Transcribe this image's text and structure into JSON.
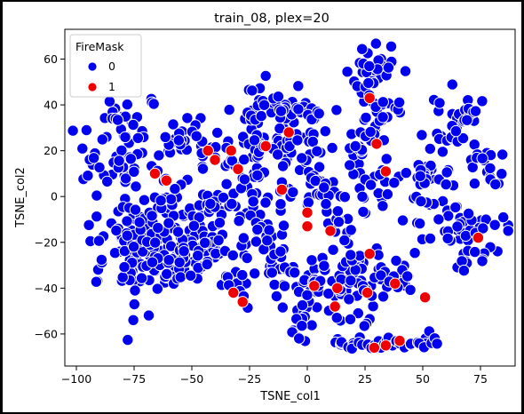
{
  "chart_data": {
    "type": "scatter",
    "title": "train_08, plex=20",
    "xlabel": "TSNE_col1",
    "ylabel": "TSNE_col2",
    "xlim": [
      -105,
      90
    ],
    "ylim": [
      -74,
      73
    ],
    "xticks": [
      -100,
      -75,
      -50,
      -25,
      0,
      25,
      50,
      75
    ],
    "yticks": [
      -60,
      -40,
      -20,
      0,
      20,
      40,
      60
    ],
    "xtick_labels": [
      "−100",
      "−75",
      "−50",
      "−25",
      "0",
      "25",
      "50",
      "75"
    ],
    "ytick_labels": [
      "−60",
      "−40",
      "−20",
      "0",
      "20",
      "40",
      "60"
    ],
    "grid": false,
    "legend": {
      "title": "FireMask",
      "placement": "top-left",
      "entries": [
        {
          "label": "0",
          "color": "#0000ee"
        },
        {
          "label": "1",
          "color": "#ee0000"
        }
      ]
    },
    "marker_edge_color": "#ffffff",
    "series": [
      {
        "name": "0",
        "color": "#0000ee",
        "clusters": [
          {
            "cx": -80,
            "cy": 20,
            "sx": 6,
            "sy": 11,
            "n": 45
          },
          {
            "cx": -82,
            "cy": 34,
            "sx": 4,
            "sy": 4,
            "n": 10
          },
          {
            "cx": -92,
            "cy": 17,
            "sx": 3,
            "sy": 3,
            "n": 6
          },
          {
            "cx": -67,
            "cy": 42,
            "sx": 2,
            "sy": 2,
            "n": 3
          },
          {
            "cx": -72,
            "cy": -20,
            "sx": 10,
            "sy": 12,
            "n": 110
          },
          {
            "cx": -55,
            "cy": -15,
            "sx": 7,
            "sy": 13,
            "n": 60
          },
          {
            "cx": -60,
            "cy": -30,
            "sx": 8,
            "sy": 5,
            "n": 30
          },
          {
            "cx": -40,
            "cy": -22,
            "sx": 5,
            "sy": 12,
            "n": 30
          },
          {
            "cx": -40,
            "cy": -2,
            "sx": 4,
            "sy": 6,
            "n": 12
          },
          {
            "cx": -32,
            "cy": -33,
            "sx": 4,
            "sy": 6,
            "n": 12
          },
          {
            "cx": -50,
            "cy": 27,
            "sx": 6,
            "sy": 4,
            "n": 20
          },
          {
            "cx": -35,
            "cy": 22,
            "sx": 6,
            "sy": 4,
            "n": 15
          },
          {
            "cx": -60,
            "cy": 22,
            "sx": 4,
            "sy": 3,
            "n": 8
          },
          {
            "cx": -20,
            "cy": 38,
            "sx": 8,
            "sy": 5,
            "n": 30
          },
          {
            "cx": -10,
            "cy": 40,
            "sx": 5,
            "sy": 4,
            "n": 15
          },
          {
            "cx": -8,
            "cy": 25,
            "sx": 4,
            "sy": 6,
            "n": 15
          },
          {
            "cx": -22,
            "cy": 18,
            "sx": 5,
            "sy": 6,
            "n": 20
          },
          {
            "cx": -24,
            "cy": -2,
            "sx": 5,
            "sy": 8,
            "n": 20
          },
          {
            "cx": -20,
            "cy": -20,
            "sx": 4,
            "sy": 10,
            "n": 20
          },
          {
            "cx": -12,
            "cy": -28,
            "sx": 4,
            "sy": 10,
            "n": 20
          },
          {
            "cx": -8,
            "cy": 5,
            "sx": 3,
            "sy": 8,
            "n": 12
          },
          {
            "cx": 3,
            "cy": 35,
            "sx": 4,
            "sy": 7,
            "n": 15
          },
          {
            "cx": 2,
            "cy": 15,
            "sx": 3,
            "sy": 8,
            "n": 15
          },
          {
            "cx": 8,
            "cy": 0,
            "sx": 4,
            "sy": 5,
            "n": 12
          },
          {
            "cx": 12,
            "cy": -10,
            "sx": 4,
            "sy": 6,
            "n": 15
          },
          {
            "cx": 0,
            "cy": -42,
            "sx": 5,
            "sy": 7,
            "n": 25
          },
          {
            "cx": 8,
            "cy": -35,
            "sx": 4,
            "sy": 4,
            "n": 10
          },
          {
            "cx": -5,
            "cy": -56,
            "sx": 3,
            "sy": 4,
            "n": 8
          },
          {
            "cx": 20,
            "cy": -38,
            "sx": 7,
            "sy": 6,
            "n": 30
          },
          {
            "cx": 30,
            "cy": -32,
            "sx": 6,
            "sy": 5,
            "n": 20
          },
          {
            "cx": 22,
            "cy": -52,
            "sx": 4,
            "sy": 4,
            "n": 10
          },
          {
            "cx": 17,
            "cy": -25,
            "sx": 3,
            "sy": 4,
            "n": 8
          },
          {
            "cx": 40,
            "cy": -37,
            "sx": 4,
            "sy": 3,
            "n": 8
          },
          {
            "cx": 28,
            "cy": 5,
            "sx": 5,
            "sy": 10,
            "n": 25
          },
          {
            "cx": 25,
            "cy": 30,
            "sx": 6,
            "sy": 5,
            "n": 15
          },
          {
            "cx": 30,
            "cy": 38,
            "sx": 4,
            "sy": 3,
            "n": 8
          },
          {
            "cx": 38,
            "cy": 40,
            "sx": 4,
            "sy": 2,
            "n": 6
          },
          {
            "cx": 20,
            "cy": 18,
            "sx": 3,
            "sy": 4,
            "n": 8
          },
          {
            "cx": 28,
            "cy": 58,
            "sx": 6,
            "sy": 5,
            "n": 25
          },
          {
            "cx": 26,
            "cy": 48,
            "sx": 3,
            "sy": 4,
            "n": 8
          },
          {
            "cx": 55,
            "cy": 10,
            "sx": 5,
            "sy": 10,
            "n": 25
          },
          {
            "cx": 63,
            "cy": 30,
            "sx": 6,
            "sy": 8,
            "n": 25
          },
          {
            "cx": 70,
            "cy": 38,
            "sx": 3,
            "sy": 3,
            "n": 8
          },
          {
            "cx": 75,
            "cy": 15,
            "sx": 5,
            "sy": 6,
            "n": 15
          },
          {
            "cx": 80,
            "cy": 8,
            "sx": 2,
            "sy": 2,
            "n": 4
          },
          {
            "cx": 60,
            "cy": -12,
            "sx": 7,
            "sy": 7,
            "n": 25
          },
          {
            "cx": 75,
            "cy": -15,
            "sx": 6,
            "sy": 7,
            "n": 20
          },
          {
            "cx": 70,
            "cy": -30,
            "sx": 5,
            "sy": 3,
            "n": 10
          },
          {
            "cx": 48,
            "cy": 5,
            "sx": 3,
            "sy": 5,
            "n": 8
          }
        ],
        "arc": {
          "x_from": 12,
          "x_to": 56,
          "n": 40
        }
      },
      {
        "name": "1",
        "color": "#ee0000",
        "points": [
          [
            -66,
            10
          ],
          [
            -61,
            7
          ],
          [
            -43,
            20
          ],
          [
            -40,
            16
          ],
          [
            -30,
            12
          ],
          [
            -33,
            20
          ],
          [
            -32,
            -42
          ],
          [
            -18,
            22
          ],
          [
            -8,
            28
          ],
          [
            -11,
            3
          ],
          [
            0,
            -7
          ],
          [
            0,
            -13
          ],
          [
            10,
            -15
          ],
          [
            13,
            -40
          ],
          [
            12,
            -48
          ],
          [
            27,
            -25
          ],
          [
            38,
            -38
          ],
          [
            30,
            23
          ],
          [
            34,
            11
          ],
          [
            27,
            43
          ],
          [
            29,
            -66
          ],
          [
            34,
            -65
          ],
          [
            40,
            -63
          ],
          [
            51,
            -44
          ],
          [
            74,
            -18
          ],
          [
            -28,
            -46
          ],
          [
            3,
            -39
          ],
          [
            26,
            -42
          ]
        ]
      }
    ]
  }
}
